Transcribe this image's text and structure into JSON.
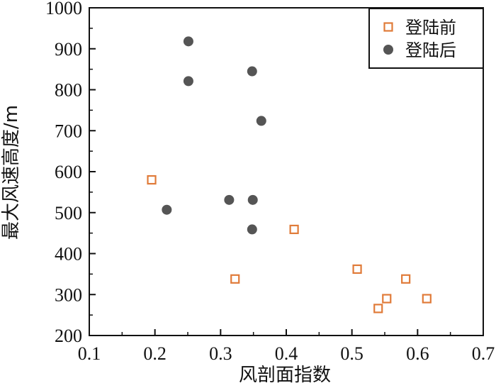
{
  "chart_data": {
    "type": "scatter",
    "xlabel": "风剖面指数",
    "ylabel": "最大风速高度/m",
    "xlim": [
      0.1,
      0.7
    ],
    "ylim": [
      200,
      1000
    ],
    "x_ticks": [
      "0.1",
      "0.2",
      "0.3",
      "0.4",
      "0.5",
      "0.6",
      "0.7"
    ],
    "y_ticks": [
      "200",
      "300",
      "400",
      "500",
      "600",
      "700",
      "800",
      "900",
      "1000"
    ],
    "grid": false,
    "legend_position": "top-right",
    "series": [
      {
        "name": "登陆前",
        "marker": "open-square",
        "color": "#E07B39",
        "points": [
          {
            "x": 0.195,
            "y": 580
          },
          {
            "x": 0.322,
            "y": 338
          },
          {
            "x": 0.412,
            "y": 459
          },
          {
            "x": 0.508,
            "y": 362
          },
          {
            "x": 0.54,
            "y": 266
          },
          {
            "x": 0.553,
            "y": 290
          },
          {
            "x": 0.582,
            "y": 338
          },
          {
            "x": 0.614,
            "y": 290
          }
        ]
      },
      {
        "name": "登陆后",
        "marker": "filled-circle",
        "color": "#555555",
        "points": [
          {
            "x": 0.251,
            "y": 918
          },
          {
            "x": 0.251,
            "y": 821
          },
          {
            "x": 0.348,
            "y": 845
          },
          {
            "x": 0.362,
            "y": 724
          },
          {
            "x": 0.218,
            "y": 507
          },
          {
            "x": 0.313,
            "y": 531
          },
          {
            "x": 0.349,
            "y": 531
          },
          {
            "x": 0.348,
            "y": 459
          }
        ]
      }
    ]
  }
}
